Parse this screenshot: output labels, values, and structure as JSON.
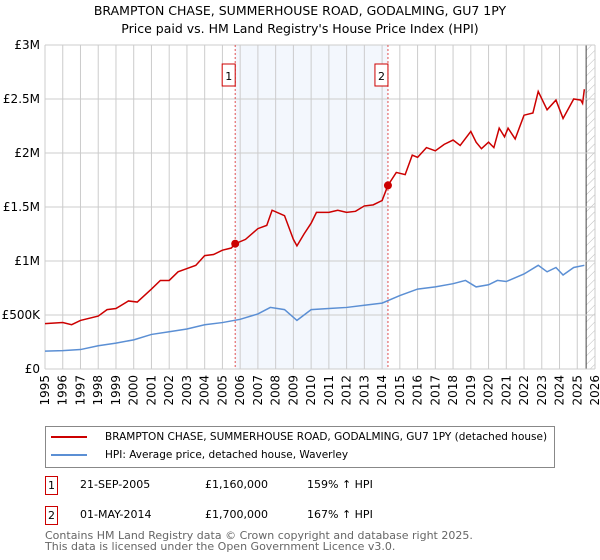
{
  "chart_data": {
    "type": "line",
    "title": "BRAMPTON CHASE, SUMMERHOUSE ROAD, GODALMING, GU7 1PY",
    "subtitle": "Price paid vs. HM Land Registry's House Price Index (HPI)",
    "xlim": [
      1995,
      2026
    ],
    "ylim": [
      0,
      3000000
    ],
    "xticks": [
      "1995",
      "1996",
      "1997",
      "1998",
      "1999",
      "2000",
      "2001",
      "2002",
      "2003",
      "2004",
      "2005",
      "2006",
      "2007",
      "2008",
      "2009",
      "2010",
      "2011",
      "2012",
      "2013",
      "2014",
      "2015",
      "2016",
      "2017",
      "2018",
      "2019",
      "2020",
      "2021",
      "2022",
      "2023",
      "2024",
      "2025",
      "2026"
    ],
    "yticks": [
      {
        "v": 0,
        "label": "£0"
      },
      {
        "v": 500000,
        "label": "£500K"
      },
      {
        "v": 1000000,
        "label": "£1M"
      },
      {
        "v": 1500000,
        "label": "£1.5M"
      },
      {
        "v": 2000000,
        "label": "£2M"
      },
      {
        "v": 2500000,
        "label": "£2.5M"
      },
      {
        "v": 3000000,
        "label": "£3M"
      }
    ],
    "grid": true,
    "shaded_range": [
      2005.72,
      2014.33
    ],
    "hatched_from": 2025.5,
    "series": [
      {
        "name": "BRAMPTON CHASE, SUMMERHOUSE ROAD, GODALMING, GU7 1PY (detached house)",
        "color": "#cc0000",
        "points": [
          [
            1995,
            420000
          ],
          [
            1996,
            430000
          ],
          [
            1996.5,
            410000
          ],
          [
            1997,
            450000
          ],
          [
            1998,
            490000
          ],
          [
            1998.5,
            550000
          ],
          [
            1999,
            560000
          ],
          [
            1999.7,
            630000
          ],
          [
            2000.2,
            620000
          ],
          [
            2001,
            740000
          ],
          [
            2001.5,
            820000
          ],
          [
            2002,
            820000
          ],
          [
            2002.5,
            900000
          ],
          [
            2003,
            930000
          ],
          [
            2003.5,
            960000
          ],
          [
            2004,
            1050000
          ],
          [
            2004.5,
            1060000
          ],
          [
            2005,
            1100000
          ],
          [
            2005.5,
            1120000
          ],
          [
            2005.72,
            1160000
          ],
          [
            2006.3,
            1200000
          ],
          [
            2007,
            1300000
          ],
          [
            2007.5,
            1330000
          ],
          [
            2007.8,
            1470000
          ],
          [
            2008.5,
            1420000
          ],
          [
            2009,
            1200000
          ],
          [
            2009.2,
            1140000
          ],
          [
            2009.6,
            1250000
          ],
          [
            2010,
            1350000
          ],
          [
            2010.3,
            1450000
          ],
          [
            2011,
            1450000
          ],
          [
            2011.5,
            1470000
          ],
          [
            2012,
            1450000
          ],
          [
            2012.5,
            1460000
          ],
          [
            2013,
            1510000
          ],
          [
            2013.5,
            1520000
          ],
          [
            2014,
            1560000
          ],
          [
            2014.33,
            1700000
          ],
          [
            2014.8,
            1820000
          ],
          [
            2015.3,
            1800000
          ],
          [
            2015.7,
            1980000
          ],
          [
            2016,
            1960000
          ],
          [
            2016.5,
            2050000
          ],
          [
            2017,
            2020000
          ],
          [
            2017.5,
            2080000
          ],
          [
            2018,
            2120000
          ],
          [
            2018.4,
            2070000
          ],
          [
            2019,
            2200000
          ],
          [
            2019.3,
            2100000
          ],
          [
            2019.6,
            2040000
          ],
          [
            2020,
            2100000
          ],
          [
            2020.3,
            2050000
          ],
          [
            2020.6,
            2230000
          ],
          [
            2020.9,
            2150000
          ],
          [
            2021.1,
            2230000
          ],
          [
            2021.5,
            2130000
          ],
          [
            2022,
            2350000
          ],
          [
            2022.5,
            2370000
          ],
          [
            2022.8,
            2570000
          ],
          [
            2023.3,
            2400000
          ],
          [
            2023.8,
            2490000
          ],
          [
            2024.2,
            2320000
          ],
          [
            2024.8,
            2500000
          ],
          [
            2025.2,
            2490000
          ],
          [
            2025.3,
            2460000
          ],
          [
            2025.4,
            2590000
          ]
        ]
      },
      {
        "name": "HPI: Average price, detached house, Waverley",
        "color": "#5b8fd4",
        "points": [
          [
            1995,
            165000
          ],
          [
            1996,
            170000
          ],
          [
            1997,
            180000
          ],
          [
            1998,
            215000
          ],
          [
            1999,
            240000
          ],
          [
            2000,
            270000
          ],
          [
            2001,
            320000
          ],
          [
            2002,
            345000
          ],
          [
            2003,
            370000
          ],
          [
            2004,
            410000
          ],
          [
            2005,
            430000
          ],
          [
            2006,
            460000
          ],
          [
            2007,
            510000
          ],
          [
            2007.7,
            570000
          ],
          [
            2008.5,
            550000
          ],
          [
            2009.2,
            450000
          ],
          [
            2010,
            550000
          ],
          [
            2011,
            560000
          ],
          [
            2012,
            570000
          ],
          [
            2013,
            590000
          ],
          [
            2014,
            610000
          ],
          [
            2015,
            680000
          ],
          [
            2016,
            740000
          ],
          [
            2017,
            760000
          ],
          [
            2018,
            790000
          ],
          [
            2018.7,
            820000
          ],
          [
            2019.3,
            760000
          ],
          [
            2020,
            780000
          ],
          [
            2020.5,
            820000
          ],
          [
            2021,
            810000
          ],
          [
            2022,
            880000
          ],
          [
            2022.8,
            960000
          ],
          [
            2023.3,
            900000
          ],
          [
            2023.8,
            940000
          ],
          [
            2024.2,
            870000
          ],
          [
            2024.8,
            940000
          ],
          [
            2025.4,
            960000
          ]
        ]
      }
    ],
    "sales": [
      {
        "label": "1",
        "x": 2005.72,
        "y": 1160000
      },
      {
        "label": "2",
        "x": 2014.33,
        "y": 1700000
      }
    ]
  },
  "table": [
    {
      "num": "1",
      "date": "21-SEP-2005",
      "price": "£1,160,000",
      "hpi": "159% ↑ HPI"
    },
    {
      "num": "2",
      "date": "01-MAY-2014",
      "price": "£1,700,000",
      "hpi": "167% ↑ HPI"
    }
  ],
  "footer": [
    "Contains HM Land Registry data © Crown copyright and database right 2025.",
    "This data is licensed under the Open Government Licence v3.0."
  ]
}
